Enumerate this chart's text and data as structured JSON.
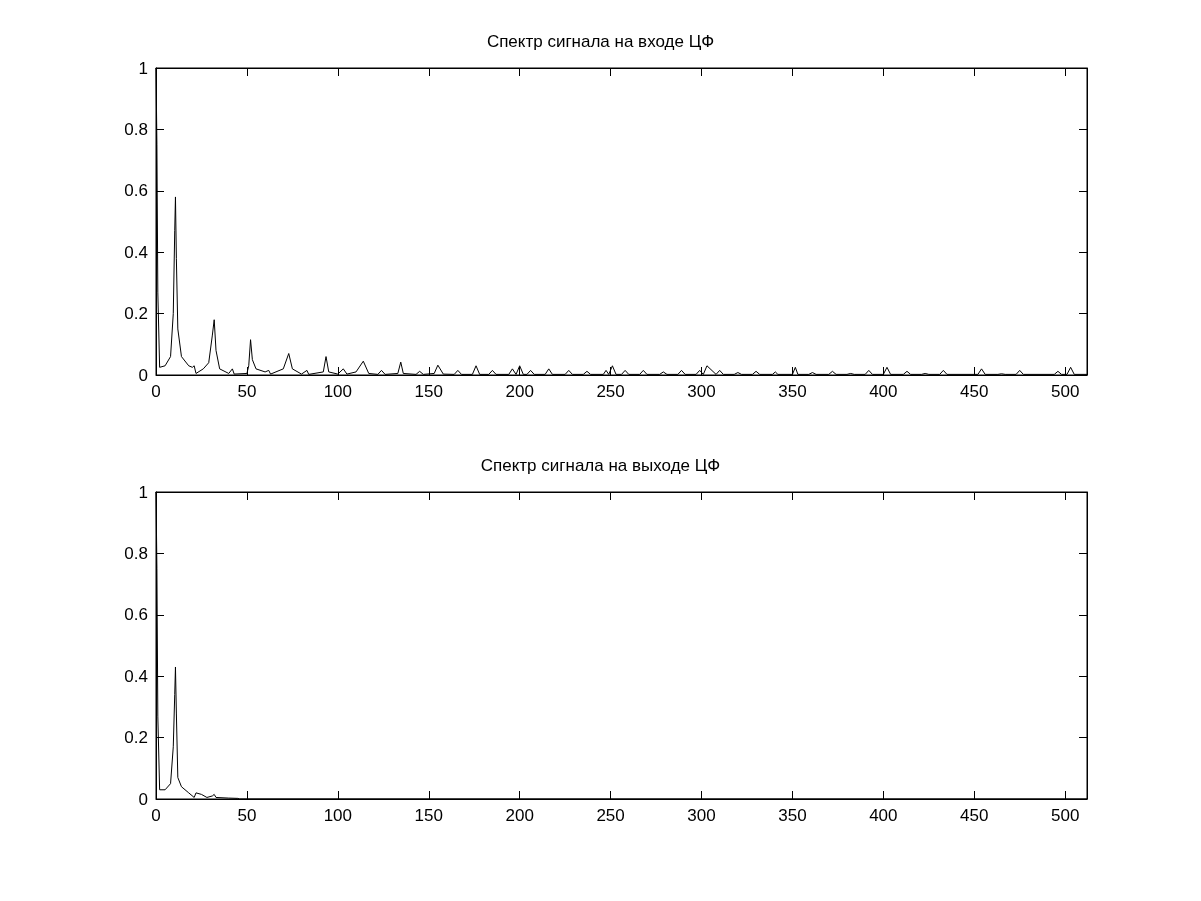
{
  "chart_data": [
    {
      "type": "line",
      "title": "Спектр сигнала на входе ЦФ",
      "xlim": [
        0,
        512
      ],
      "xticks": [
        0,
        50,
        100,
        150,
        200,
        250,
        300,
        350,
        400,
        450,
        500
      ],
      "ylim": [
        0,
        1
      ],
      "yticks": [
        0,
        0.2,
        0.4,
        0.6,
        0.8,
        1
      ],
      "grid": false,
      "marker": "none",
      "line_style": "solid",
      "series": [
        {
          "color": "#000000",
          "x": [
            0,
            0.5,
            1,
            2,
            5,
            8,
            9.5,
            10.3,
            10.7,
            11.2,
            12,
            14,
            18,
            20,
            21,
            22,
            26,
            29,
            31,
            32,
            33,
            35,
            40,
            42,
            43,
            50,
            51,
            52,
            53,
            55,
            60,
            62,
            63,
            70,
            73,
            75,
            80,
            83,
            84,
            92,
            93.5,
            95,
            100,
            103,
            105,
            110,
            114,
            117,
            122,
            124,
            126,
            133,
            134.6,
            136,
            143,
            145,
            147,
            153,
            155,
            158,
            164,
            166,
            168,
            174,
            176,
            178,
            183,
            185,
            187,
            194,
            196,
            198,
            200,
            202,
            204,
            206,
            208,
            214,
            216,
            218,
            225,
            227,
            229,
            235,
            237,
            239,
            246,
            247.5,
            249,
            251,
            253,
            256,
            258,
            260,
            266,
            268,
            270,
            277,
            279,
            281,
            287,
            289,
            291,
            297,
            299,
            301,
            303,
            308,
            310,
            312,
            318,
            320,
            322,
            328,
            330,
            332,
            339,
            340.6,
            342,
            350,
            351.6,
            353,
            359,
            361,
            363,
            370,
            372,
            374,
            380,
            382,
            384,
            390,
            392,
            394,
            400,
            402,
            404,
            411,
            413,
            415,
            421,
            423,
            425,
            431,
            433,
            435,
            452,
            454,
            456,
            463,
            465,
            467,
            473,
            475,
            477,
            494,
            496,
            498,
            501,
            503,
            505,
            512
          ],
          "values": [
            1,
            0.75,
            0.27,
            0.025,
            0.03,
            0.06,
            0.2,
            0.47,
            0.58,
            0.38,
            0.15,
            0.06,
            0.03,
            0.025,
            0.03,
            0.005,
            0.02,
            0.04,
            0.13,
            0.18,
            0.08,
            0.02,
            0.005,
            0.02,
            0.003,
            0.005,
            0.03,
            0.115,
            0.05,
            0.02,
            0.01,
            0.015,
            0.003,
            0.02,
            0.07,
            0.02,
            0.003,
            0.015,
            0.002,
            0.01,
            0.06,
            0.01,
            0.003,
            0.02,
            0.003,
            0.01,
            0.045,
            0.005,
            0.002,
            0.015,
            0.002,
            0.005,
            0.042,
            0.005,
            0.002,
            0.012,
            0.002,
            0.005,
            0.032,
            0.003,
            0.002,
            0.015,
            0.002,
            0.002,
            0.03,
            0.002,
            0.002,
            0.015,
            0.002,
            0.002,
            0.02,
            0.002,
            0.03,
            0.002,
            0.002,
            0.015,
            0.002,
            0.002,
            0.02,
            0.002,
            0.002,
            0.015,
            0.002,
            0.002,
            0.012,
            0.002,
            0.002,
            0.015,
            0.002,
            0.03,
            0.002,
            0.002,
            0.015,
            0.002,
            0.002,
            0.015,
            0.002,
            0.002,
            0.01,
            0.002,
            0.002,
            0.015,
            0.002,
            0.002,
            0.015,
            0.002,
            0.03,
            0.002,
            0.015,
            0.002,
            0.002,
            0.008,
            0.002,
            0.002,
            0.012,
            0.002,
            0.002,
            0.01,
            0.002,
            0.002,
            0.025,
            0.002,
            0.002,
            0.008,
            0.002,
            0.002,
            0.012,
            0.002,
            0.002,
            0.005,
            0.002,
            0.002,
            0.015,
            0.002,
            0.002,
            0.025,
            0.002,
            0.002,
            0.012,
            0.002,
            0.002,
            0.005,
            0.002,
            0.002,
            0.015,
            0.002,
            0.002,
            0.02,
            0.002,
            0.002,
            0.004,
            0.002,
            0.002,
            0.015,
            0.002,
            0.002,
            0.012,
            0.002,
            0.002,
            0.025,
            0.002,
            0.002
          ]
        }
      ]
    },
    {
      "type": "line",
      "title": "Спектр сигнала на выходе ЦФ",
      "xlim": [
        0,
        512
      ],
      "xticks": [
        0,
        50,
        100,
        150,
        200,
        250,
        300,
        350,
        400,
        450,
        500
      ],
      "ylim": [
        0,
        1
      ],
      "yticks": [
        0,
        0.2,
        0.4,
        0.6,
        0.8,
        1
      ],
      "grid": false,
      "marker": "none",
      "line_style": "solid",
      "series": [
        {
          "color": "#000000",
          "x": [
            0,
            0.5,
            1,
            2,
            5,
            8,
            9.5,
            10.3,
            10.7,
            11.2,
            12,
            14,
            18,
            21,
            22,
            25,
            28,
            31,
            32,
            33,
            40,
            45,
            46,
            512
          ],
          "values": [
            1,
            0.75,
            0.27,
            0.03,
            0.03,
            0.05,
            0.17,
            0.34,
            0.43,
            0.28,
            0.07,
            0.04,
            0.02,
            0.005,
            0.02,
            0.015,
            0.005,
            0.01,
            0.015,
            0.005,
            0.003,
            0.002,
            0,
            0
          ]
        }
      ]
    }
  ]
}
